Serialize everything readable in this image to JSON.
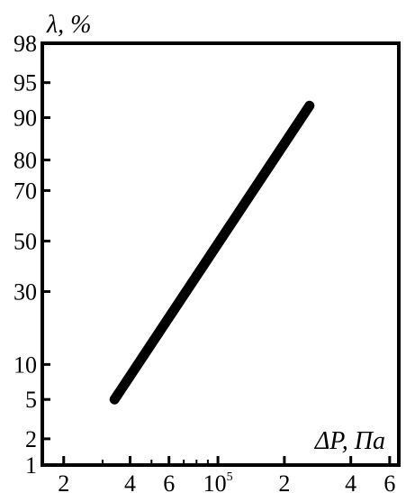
{
  "chart_data": {
    "type": "line",
    "title": "",
    "xlabel": "ΔP, Па",
    "ylabel": "λ, %",
    "x_scale": "log",
    "y_scale": "probability",
    "xlim": [
      16000,
      660000
    ],
    "ylim": [
      1,
      98
    ],
    "x_ticks": [
      {
        "value": 20000,
        "label": "2"
      },
      {
        "value": 40000,
        "label": "4"
      },
      {
        "value": 60000,
        "label": "6"
      },
      {
        "value": 100000,
        "label": "10",
        "sup": "5"
      },
      {
        "value": 200000,
        "label": "2"
      },
      {
        "value": 400000,
        "label": "4"
      },
      {
        "value": 600000,
        "label": "6"
      }
    ],
    "x_minor_ticks": [
      30000,
      50000,
      70000,
      80000,
      90000
    ],
    "y_ticks": [
      1,
      2,
      5,
      10,
      30,
      50,
      70,
      80,
      90,
      95,
      98
    ],
    "y_tick_labels": [
      "1",
      "2",
      "5",
      "10",
      "30",
      "50",
      "70",
      "80",
      "90",
      "95",
      "98"
    ],
    "grid": false,
    "series": [
      {
        "name": "",
        "color": "#000000",
        "x": [
          34000,
          260000
        ],
        "y": [
          5,
          92
        ]
      }
    ]
  }
}
